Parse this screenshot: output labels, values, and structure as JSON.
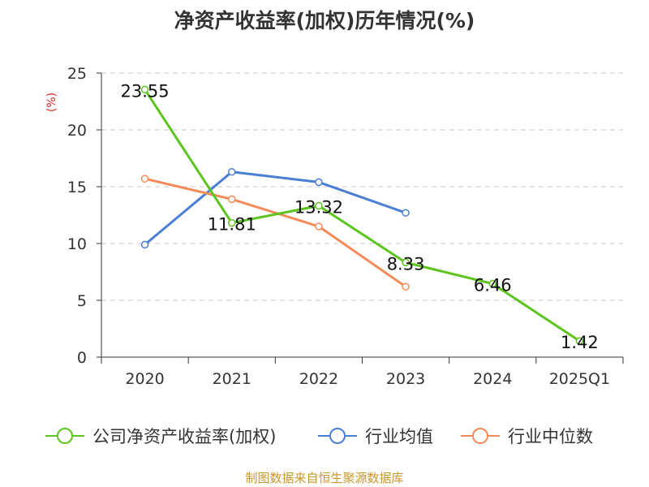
{
  "title": "净资产收益率(加权)历年情况(%)",
  "source": "制图数据来自恒生聚源数据库",
  "chart_data": {
    "type": "line",
    "title": "净资产收益率(加权)历年情况(%)",
    "ylabel": "(%)",
    "ylim": [
      0,
      25
    ],
    "yticks": [
      0,
      5,
      10,
      15,
      20,
      25
    ],
    "categories": [
      "2020",
      "2021",
      "2022",
      "2023",
      "2024",
      "2025Q1"
    ],
    "series": [
      {
        "name": "公司净资产收益率(加权)",
        "color": "#5cc41e",
        "values": [
          23.55,
          11.81,
          13.32,
          8.33,
          6.46,
          1.42
        ],
        "labels": [
          "23.55",
          "11.81",
          "13.32",
          "8.33",
          "6.46",
          "1.42"
        ]
      },
      {
        "name": "行业均值",
        "color": "#4a7fd6",
        "values": [
          9.9,
          16.3,
          15.4,
          12.7,
          null,
          null
        ]
      },
      {
        "name": "行业中位数",
        "color": "#f48a57",
        "values": [
          15.7,
          13.9,
          11.5,
          6.2,
          null,
          null
        ]
      }
    ]
  }
}
